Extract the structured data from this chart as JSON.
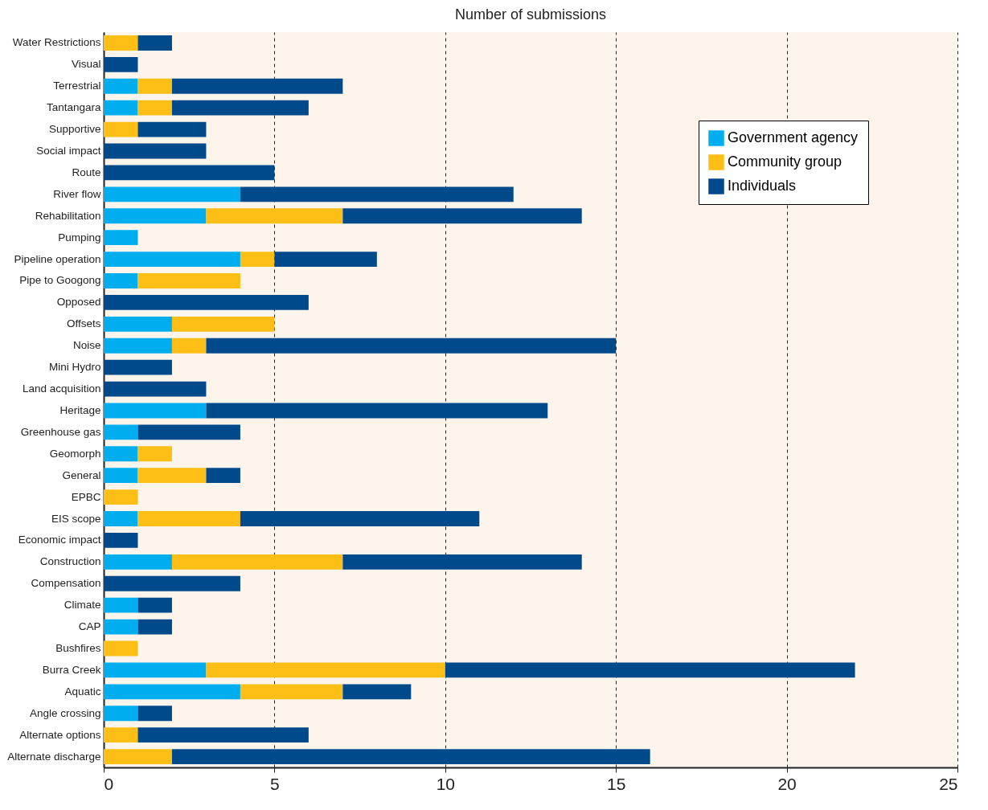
{
  "chart_data": {
    "type": "bar",
    "orientation": "horizontal",
    "stacked": true,
    "xlabel": "Number of submissions",
    "categories": [
      "Water Restrictions",
      "Visual",
      "Terrestrial",
      "Tantangara",
      "Supportive",
      "Social impact",
      "Route",
      "River flow",
      "Rehabilitation",
      "Pumping",
      "Pipeline operation",
      "Pipe to Googong",
      "Opposed",
      "Offsets",
      "Noise",
      "Mini Hydro",
      "Land acquisition",
      "Heritage",
      "Greenhouse gas",
      "Geomorph",
      "General",
      "EPBC",
      "EIS scope",
      "Economic impact",
      "Construction",
      "Compensation",
      "Climate",
      "CAP",
      "Bushfires",
      "Burra Creek",
      "Aquatic",
      "Angle crossing",
      "Alternate options",
      "Alternate discharge"
    ],
    "series": [
      {
        "name": "Government agency",
        "color": "#00aeef",
        "values": [
          0,
          0,
          1,
          1,
          0,
          0,
          0,
          4,
          3,
          1,
          4,
          1,
          0,
          2,
          2,
          0,
          0,
          3,
          1,
          1,
          1,
          0,
          1,
          0,
          2,
          0,
          1,
          1,
          0,
          3,
          4,
          1,
          0,
          0
        ]
      },
      {
        "name": "Community group",
        "color": "#fdbe16",
        "values": [
          1,
          0,
          1,
          1,
          1,
          0,
          0,
          0,
          4,
          0,
          1,
          3,
          0,
          3,
          1,
          0,
          0,
          0,
          0,
          1,
          2,
          1,
          3,
          0,
          5,
          0,
          0,
          0,
          1,
          7,
          3,
          0,
          1,
          2
        ]
      },
      {
        "name": "Individuals",
        "color": "#004a8c",
        "values": [
          1,
          1,
          5,
          4,
          2,
          3,
          5,
          8,
          7,
          0,
          3,
          0,
          6,
          0,
          12,
          2,
          3,
          10,
          3,
          0,
          1,
          0,
          7,
          1,
          7,
          4,
          1,
          1,
          0,
          12,
          2,
          1,
          5,
          14
        ]
      }
    ],
    "xlim": [
      0,
      25
    ],
    "xticks": [
      0,
      5,
      10,
      15,
      20,
      25
    ],
    "grid": "x",
    "legend": "top right"
  }
}
